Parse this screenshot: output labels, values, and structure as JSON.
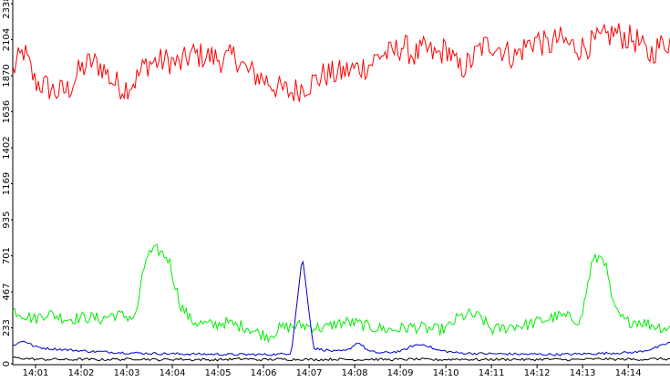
{
  "chart_data": {
    "type": "line",
    "title": "",
    "xlabel": "",
    "ylabel": "",
    "grid": false,
    "legend": "none",
    "x_range": [
      "14:00:30",
      "14:14:55"
    ],
    "ylim": [
      0,
      2338
    ],
    "y_ticks": [
      "0",
      "233",
      "467",
      "701",
      "935",
      "1169",
      "1402",
      "1636",
      "1870",
      "2104",
      "2338"
    ],
    "x_ticks": [
      "14:01",
      "14:02",
      "14:03",
      "14:04",
      "14:05",
      "14:06",
      "14:07",
      "14:08",
      "14:09",
      "14:10",
      "14:11",
      "14:12",
      "14:13",
      "14:14"
    ],
    "colors": {
      "background": "#ffffff",
      "axis": "#000000"
    },
    "series": [
      {
        "color": "#ff0000",
        "time_start": "14:00:30",
        "time_end": "14:14:55",
        "values": [
          1900,
          2030,
          1830,
          1800,
          1760,
          1780,
          1900,
          1960,
          1930,
          1830,
          1790,
          1840,
          1950,
          1960,
          1970,
          1940,
          2010,
          2000,
          1990,
          1970,
          2000,
          1900,
          1870,
          1830,
          1780,
          1760,
          1800,
          1830,
          1880,
          1880,
          1900,
          1920,
          1940,
          2010,
          2010,
          2070,
          2000,
          2040,
          2000,
          2050,
          1910,
          1950,
          2050,
          2080,
          2040,
          1990,
          2060,
          2110,
          2060,
          2110,
          2070,
          2050,
          2080,
          2110,
          2150,
          2120,
          2100,
          2000,
          2060,
          2100
        ]
      },
      {
        "color": "#00ee00",
        "time_start": "14:00:30",
        "time_end": "14:14:55",
        "values": [
          350,
          320,
          290,
          330,
          310,
          290,
          300,
          300,
          290,
          320,
          310,
          300,
          700,
          740,
          680,
          390,
          280,
          260,
          250,
          270,
          250,
          240,
          200,
          180,
          230,
          240,
          250,
          240,
          230,
          260,
          270,
          260,
          240,
          230,
          220,
          230,
          240,
          230,
          220,
          230,
          300,
          320,
          300,
          220,
          230,
          250,
          250,
          270,
          290,
          310,
          300,
          280,
          660,
          710,
          350,
          270,
          280,
          260,
          240,
          230
        ]
      },
      {
        "color": "#0000cc",
        "time_start": "14:00:30",
        "time_end": "14:14:55",
        "values": [
          120,
          150,
          110,
          100,
          95,
          90,
          85,
          80,
          78,
          75,
          72,
          70,
          68,
          66,
          65,
          64,
          63,
          62,
          62,
          61,
          60,
          60,
          60,
          60,
          62,
          70,
          700,
          100,
          90,
          80,
          85,
          140,
          80,
          70,
          75,
          85,
          120,
          125,
          90,
          80,
          70,
          68,
          66,
          65,
          64,
          63,
          62,
          62,
          61,
          60,
          62,
          64,
          66,
          68,
          70,
          72,
          75,
          90,
          110,
          140
        ]
      },
      {
        "color": "#000000",
        "time_start": "14:00:30",
        "time_end": "14:14:55",
        "values": [
          40,
          35,
          30,
          28,
          30,
          25,
          30,
          28,
          26,
          30,
          28,
          32,
          30,
          26,
          28,
          30,
          26,
          28,
          25,
          28,
          30,
          32,
          26,
          28,
          30,
          28,
          30,
          26,
          28,
          30,
          28,
          26,
          30,
          28,
          27,
          28,
          30,
          28,
          26,
          28,
          30,
          28,
          26,
          29,
          28,
          30,
          26,
          28,
          30,
          28,
          26,
          28,
          30,
          32,
          28,
          30,
          28,
          30,
          32,
          30
        ]
      }
    ]
  }
}
